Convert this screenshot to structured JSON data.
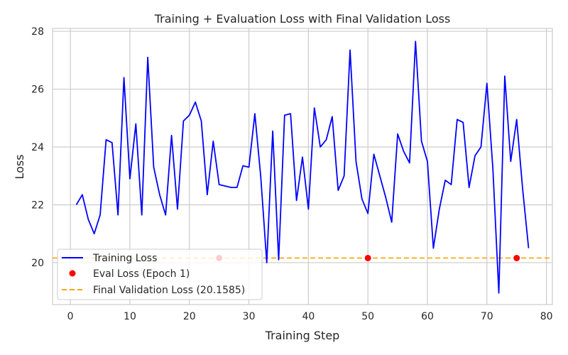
{
  "chart_data": {
    "type": "line",
    "title": "Training + Evaluation Loss with Final Validation Loss",
    "xlabel": "Training Step",
    "ylabel": "Loss",
    "xlim": [
      -3,
      81
    ],
    "ylim": [
      18.55,
      28.1
    ],
    "x_ticks": [
      0,
      10,
      20,
      30,
      40,
      50,
      60,
      70,
      80
    ],
    "y_ticks": [
      20,
      22,
      24,
      26,
      28
    ],
    "grid": true,
    "legend_position": "lower-left",
    "series": [
      {
        "name": "Training Loss",
        "type": "line",
        "color": "#0000ff",
        "x": [
          1,
          2,
          3,
          4,
          5,
          6,
          7,
          8,
          9,
          10,
          11,
          12,
          13,
          14,
          15,
          16,
          17,
          18,
          19,
          20,
          21,
          22,
          23,
          24,
          25,
          26,
          27,
          28,
          29,
          30,
          31,
          32,
          33,
          34,
          35,
          36,
          37,
          38,
          39,
          40,
          41,
          42,
          43,
          44,
          45,
          46,
          47,
          48,
          49,
          50,
          51,
          52,
          53,
          54,
          55,
          56,
          57,
          58,
          59,
          60,
          61,
          62,
          63,
          64,
          65,
          66,
          67,
          68,
          69,
          70,
          71,
          72,
          73,
          74,
          75,
          76,
          77
        ],
        "y": [
          22.0,
          22.35,
          21.5,
          21.0,
          21.65,
          24.25,
          24.15,
          21.65,
          26.4,
          22.9,
          24.8,
          21.65,
          27.1,
          23.3,
          22.35,
          21.65,
          24.4,
          21.85,
          24.9,
          25.1,
          25.55,
          24.9,
          22.35,
          24.2,
          22.7,
          22.65,
          22.6,
          22.6,
          23.35,
          23.3,
          25.15,
          22.95,
          20.0,
          24.55,
          20.1,
          25.1,
          25.15,
          22.15,
          23.65,
          21.85,
          25.35,
          24.0,
          24.25,
          25.05,
          22.5,
          23.0,
          27.35,
          23.5,
          22.2,
          21.7,
          23.75,
          23.0,
          22.25,
          21.4,
          24.45,
          23.85,
          23.45,
          27.65,
          24.2,
          23.5,
          20.5,
          21.85,
          22.85,
          22.7,
          24.95,
          24.85,
          22.6,
          23.7,
          24.0,
          26.2,
          23.25,
          18.95,
          26.45,
          23.5,
          24.95,
          22.55,
          20.5
        ]
      },
      {
        "name": "Eval Loss (Epoch 1)",
        "type": "scatter",
        "color": "#ff0000",
        "x": [
          25,
          50,
          75
        ],
        "y": [
          20.1585,
          20.1585,
          20.1585
        ]
      },
      {
        "name": "Final Validation Loss (20.1585)",
        "type": "hline",
        "color": "#ffa500",
        "y": 20.1585
      }
    ]
  }
}
